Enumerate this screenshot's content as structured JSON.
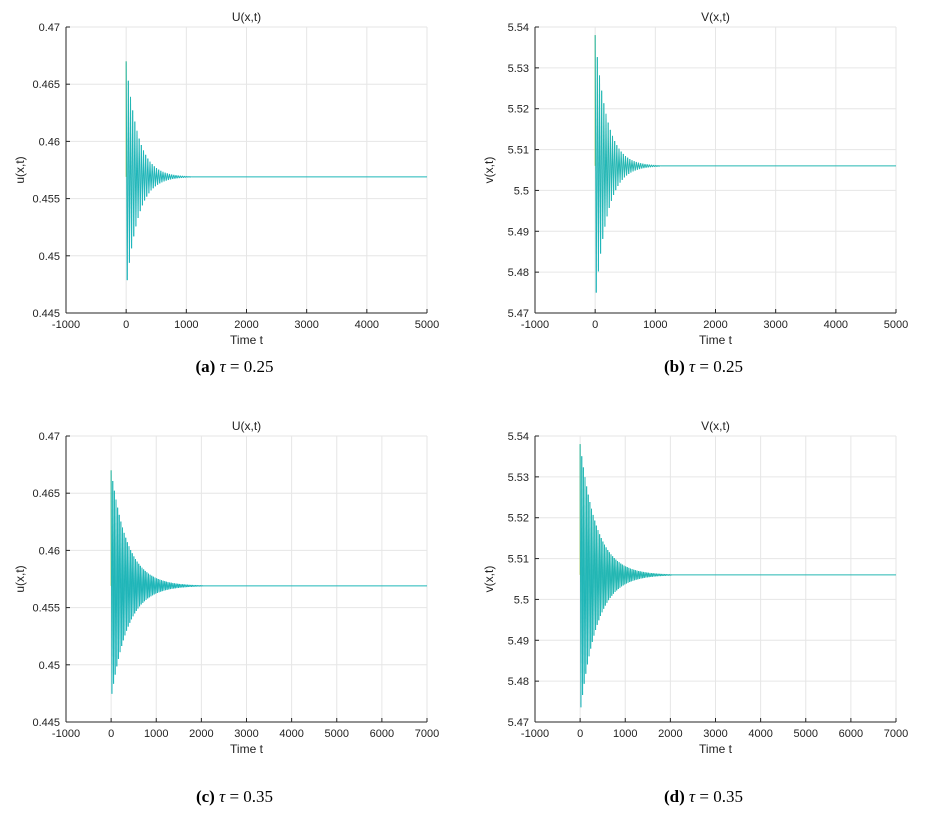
{
  "chart_data": [
    {
      "type": "line",
      "panel_id": "a",
      "title": "U(x,t)",
      "xlabel": "Time t",
      "ylabel": "u(x,t)",
      "xlim": [
        -1000,
        5000
      ],
      "ylim": [
        0.445,
        0.47
      ],
      "xticks": [
        -1000,
        0,
        1000,
        2000,
        3000,
        4000,
        5000
      ],
      "xtick_labels": [
        "-1000",
        "0",
        "1000",
        "2000",
        "3000",
        "4000",
        "5000"
      ],
      "yticks": [
        0.445,
        0.45,
        0.455,
        0.46,
        0.465,
        0.47
      ],
      "ytick_labels": [
        "0.445",
        "0.45",
        "0.455",
        "0.46",
        "0.465",
        "0.47"
      ],
      "grid": true,
      "colormap": "parula",
      "series": [
        {
          "name": "u(x,t)",
          "x_start": 0,
          "x_end": 5000,
          "equilibrium": 0.4569,
          "peak_max": 0.467,
          "peak_min": 0.447,
          "settle_time": 900
        }
      ],
      "caption": {
        "label": "(a)",
        "symbol": "τ",
        "equals": " = 0.25"
      }
    },
    {
      "type": "line",
      "panel_id": "b",
      "title": "V(x,t)",
      "xlabel": "Time t",
      "ylabel": "v(x,t)",
      "xlim": [
        -1000,
        5000
      ],
      "ylim": [
        5.47,
        5.54
      ],
      "xticks": [
        -1000,
        0,
        1000,
        2000,
        3000,
        4000,
        5000
      ],
      "xtick_labels": [
        "-1000",
        "0",
        "1000",
        "2000",
        "3000",
        "4000",
        "5000"
      ],
      "yticks": [
        5.47,
        5.48,
        5.49,
        5.5,
        5.51,
        5.52,
        5.53,
        5.54
      ],
      "ytick_labels": [
        "5.47",
        "5.48",
        "5.49",
        "5.5",
        "5.51",
        "5.52",
        "5.53",
        "5.54"
      ],
      "grid": true,
      "colormap": "parula",
      "series": [
        {
          "name": "v(x,t)",
          "x_start": 0,
          "x_end": 5000,
          "equilibrium": 5.506,
          "peak_max": 5.538,
          "peak_min": 5.472,
          "settle_time": 900
        }
      ],
      "caption": {
        "label": "(b)",
        "symbol": "τ",
        "equals": " = 0.25"
      }
    },
    {
      "type": "line",
      "panel_id": "c",
      "title": "U(x,t)",
      "xlabel": "Time t",
      "ylabel": "u(x,t)",
      "xlim": [
        -1000,
        7000
      ],
      "ylim": [
        0.445,
        0.47
      ],
      "xticks": [
        -1000,
        0,
        1000,
        2000,
        3000,
        4000,
        5000,
        6000,
        7000
      ],
      "xtick_labels": [
        "-1000",
        "0",
        "1000",
        "2000",
        "3000",
        "4000",
        "5000",
        "6000",
        "7000"
      ],
      "yticks": [
        0.445,
        0.45,
        0.455,
        0.46,
        0.465,
        0.47
      ],
      "ytick_labels": [
        "0.445",
        "0.45",
        "0.455",
        "0.46",
        "0.465",
        "0.47"
      ],
      "grid": true,
      "colormap": "parula",
      "series": [
        {
          "name": "u(x,t)",
          "x_start": 0,
          "x_end": 7000,
          "equilibrium": 0.4569,
          "peak_max": 0.467,
          "peak_min": 0.447,
          "settle_time": 1700
        }
      ],
      "caption": {
        "label": "(c)",
        "symbol": "τ",
        "equals": " = 0.35"
      }
    },
    {
      "type": "line",
      "panel_id": "d",
      "title": "V(x,t)",
      "xlabel": "Time t",
      "ylabel": "v(x,t)",
      "xlim": [
        -1000,
        7000
      ],
      "ylim": [
        5.47,
        5.54
      ],
      "xticks": [
        -1000,
        0,
        1000,
        2000,
        3000,
        4000,
        5000,
        6000,
        7000
      ],
      "xtick_labels": [
        "-1000",
        "0",
        "1000",
        "2000",
        "3000",
        "4000",
        "5000",
        "6000",
        "7000"
      ],
      "yticks": [
        5.47,
        5.48,
        5.49,
        5.5,
        5.51,
        5.52,
        5.53,
        5.54
      ],
      "ytick_labels": [
        "5.47",
        "5.48",
        "5.49",
        "5.5",
        "5.51",
        "5.52",
        "5.53",
        "5.54"
      ],
      "grid": true,
      "colormap": "parula",
      "series": [
        {
          "name": "v(x,t)",
          "x_start": 0,
          "x_end": 7000,
          "equilibrium": 5.506,
          "peak_max": 5.538,
          "peak_min": 5.472,
          "settle_time": 1700
        }
      ],
      "caption": {
        "label": "(d)",
        "symbol": "τ",
        "equals": " = 0.35"
      }
    }
  ]
}
